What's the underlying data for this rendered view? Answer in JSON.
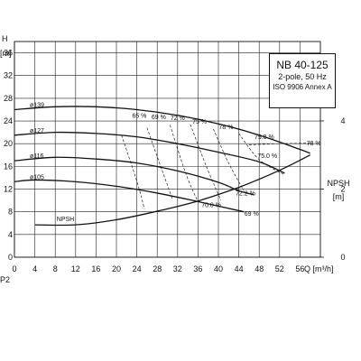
{
  "chart_data": {
    "type": "line",
    "info_box": {
      "model": "NB 40-125",
      "drive": "2-pole, 50 Hz",
      "standard": "ISO 9906 Annex A"
    },
    "left_axis": {
      "label": "H",
      "unit": "[m]",
      "ticks": [
        0,
        4,
        8,
        12,
        16,
        20,
        24,
        28,
        32,
        36
      ],
      "range": [
        0,
        38
      ]
    },
    "x_axis": {
      "label": "Q [m³/h]",
      "ticks": [
        0,
        4,
        8,
        12,
        16,
        20,
        24,
        28,
        32,
        36,
        40,
        44,
        48,
        52,
        56
      ],
      "range": [
        0,
        60
      ]
    },
    "right_axis": {
      "label": "NPSH",
      "unit": "[m]",
      "ticks": [
        0,
        2,
        4
      ],
      "range": [
        0,
        6.33
      ]
    },
    "corner_label": "P2",
    "head_curves": [
      {
        "name": "ø139",
        "points": [
          [
            0,
            26.0
          ],
          [
            8,
            26.5
          ],
          [
            16,
            26.5
          ],
          [
            24,
            26
          ],
          [
            32,
            25
          ],
          [
            40,
            23.5
          ],
          [
            48,
            21.5
          ],
          [
            56,
            19.0
          ],
          [
            58,
            18.3
          ]
        ]
      },
      {
        "name": "ø127",
        "points": [
          [
            0,
            21.5
          ],
          [
            8,
            22.0
          ],
          [
            16,
            21.8
          ],
          [
            24,
            21.2
          ],
          [
            32,
            20.0
          ],
          [
            40,
            18.5
          ],
          [
            48,
            16.8
          ],
          [
            53,
            14.8
          ]
        ]
      },
      {
        "name": "ø116",
        "points": [
          [
            0,
            17.0
          ],
          [
            8,
            17.6
          ],
          [
            16,
            17.3
          ],
          [
            24,
            16.6
          ],
          [
            32,
            15.2
          ],
          [
            40,
            13.2
          ],
          [
            44,
            11.7
          ],
          [
            47,
            11.0
          ]
        ]
      },
      {
        "name": "ø105",
        "points": [
          [
            0,
            13.3
          ],
          [
            4,
            13.6
          ],
          [
            12,
            13.3
          ],
          [
            20,
            12.5
          ],
          [
            28,
            11.3
          ],
          [
            36,
            9.8
          ],
          [
            42,
            8.6
          ],
          [
            45,
            8.0
          ]
        ]
      }
    ],
    "npsh_curve": {
      "name": "NPSH",
      "points": [
        [
          4,
          0.95
        ],
        [
          12,
          0.95
        ],
        [
          20,
          1.1
        ],
        [
          28,
          1.35
        ],
        [
          36,
          1.65
        ],
        [
          44,
          2.05
        ],
        [
          52,
          2.55
        ],
        [
          58,
          3.0
        ]
      ]
    },
    "efficiency_labels": [
      {
        "text": "65 %",
        "q": 24.5,
        "h": 24.6
      },
      {
        "text": "69 %",
        "q": 28.3,
        "h": 24.3
      },
      {
        "text": "72 %",
        "q": 32.0,
        "h": 24.2
      },
      {
        "text": "75 %",
        "q": 36.3,
        "h": 23.5
      },
      {
        "text": "78 %",
        "q": 41.5,
        "h": 22.6
      },
      {
        "text": "79.8 %",
        "q": 49.0,
        "h": 20.8
      },
      {
        "text": "78 %",
        "q": 58.7,
        "h": 19.7
      },
      {
        "text": "75.0 %",
        "q": 49.6,
        "h": 17.5
      },
      {
        "text": "72.2 %",
        "q": 45.3,
        "h": 10.9
      },
      {
        "text": "70.0 %",
        "q": 38.6,
        "h": 8.8
      },
      {
        "text": "69 %",
        "q": 46.5,
        "h": 7.3
      }
    ],
    "efficiency_lines": [
      [
        [
          21,
          21.5
        ],
        [
          24,
          13.4
        ],
        [
          25.5,
          8.5
        ]
      ],
      [
        [
          26,
          22.8
        ],
        [
          29,
          15.2
        ],
        [
          31,
          10.2
        ]
      ],
      [
        [
          30.5,
          23.3
        ],
        [
          33.5,
          15.0
        ],
        [
          36,
          9.7
        ]
      ],
      [
        [
          34.5,
          23.4
        ],
        [
          37.5,
          16.3
        ],
        [
          40.5,
          10.0
        ]
      ],
      [
        [
          39,
          22.6
        ],
        [
          42,
          16.6
        ],
        [
          45,
          11.7
        ]
      ],
      [
        [
          44,
          21.8
        ],
        [
          48,
          17.2
        ],
        [
          53,
          14.5
        ]
      ],
      [
        [
          46,
          19.8
        ],
        [
          52,
          20.0
        ],
        [
          58,
          20.1
        ]
      ]
    ]
  }
}
